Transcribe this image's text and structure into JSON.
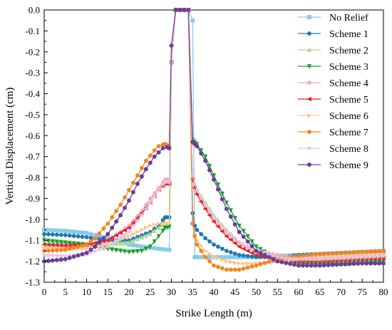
{
  "chart_data": {
    "type": "line",
    "title": "",
    "xlabel": "Strike Length (m)",
    "ylabel": "Vertical Displacement (cm)",
    "xlim": [
      0,
      80
    ],
    "ylim": [
      -1.3,
      0.0
    ],
    "xticks": [
      "0",
      "5",
      "10",
      "15",
      "20",
      "25",
      "30",
      "35",
      "40",
      "45",
      "50",
      "55",
      "60",
      "65",
      "70",
      "75",
      "80"
    ],
    "yticks": [
      "0.0",
      "-0.1",
      "-0.2",
      "-0.3",
      "-0.4",
      "-0.5",
      "-0.6",
      "-0.7",
      "-0.8",
      "-0.9",
      "-1.0",
      "-1.1",
      "-1.2",
      "-1.3"
    ],
    "grid": false,
    "legend_position": "top-right",
    "series": [
      {
        "name": "No Relief",
        "color": "#87cbe8",
        "marker": "square",
        "x": [
          0,
          5,
          10,
          15,
          20,
          25,
          27,
          29,
          29.5,
          30,
          31,
          32,
          33,
          34,
          35,
          35.5,
          36,
          37,
          40,
          45,
          50,
          55,
          60,
          65,
          70,
          75,
          80
        ],
        "y": [
          -1.05,
          -1.055,
          -1.065,
          -1.09,
          -1.12,
          -1.135,
          -1.14,
          -1.145,
          -1.145,
          -0.25,
          0.0,
          0.0,
          0.0,
          0.0,
          -0.05,
          -1.18,
          -1.18,
          -1.18,
          -1.18,
          -1.18,
          -1.18,
          -1.175,
          -1.17,
          -1.165,
          -1.16,
          -1.155,
          -1.15
        ]
      },
      {
        "name": "Scheme 1",
        "color": "#1f77b4",
        "marker": "circle",
        "x": [
          0,
          5,
          10,
          15,
          20,
          25,
          27,
          28.5,
          29,
          29.5,
          30,
          31,
          32,
          33,
          34,
          35,
          35.5,
          36,
          38,
          40,
          43,
          46,
          50,
          55,
          60,
          65,
          70,
          75,
          80
        ],
        "y": [
          -1.07,
          -1.075,
          -1.085,
          -1.1,
          -1.1,
          -1.06,
          -1.03,
          -0.99,
          -0.99,
          -0.99,
          -0.25,
          0.0,
          0.0,
          0.0,
          0.0,
          -0.97,
          -1.03,
          -1.05,
          -1.09,
          -1.12,
          -1.15,
          -1.17,
          -1.18,
          -1.18,
          -1.17,
          -1.165,
          -1.16,
          -1.155,
          -1.155
        ]
      },
      {
        "name": "Scheme 2",
        "color": "#a8dd8a",
        "marker": "triangle-up",
        "x": [
          0,
          5,
          10,
          15,
          20,
          25,
          27,
          28.5,
          29.5,
          30,
          31,
          32,
          33,
          34,
          35,
          35.5,
          36,
          38,
          40,
          43,
          46,
          50,
          55,
          60,
          65,
          70,
          75,
          80
        ],
        "y": [
          -1.11,
          -1.115,
          -1.12,
          -1.12,
          -1.11,
          -1.07,
          -1.04,
          -1.02,
          -1.02,
          -0.25,
          0.0,
          0.0,
          0.0,
          0.0,
          -0.8,
          -0.84,
          -0.86,
          -0.92,
          -0.98,
          -1.05,
          -1.11,
          -1.15,
          -1.18,
          -1.19,
          -1.19,
          -1.18,
          -1.17,
          -1.165
        ]
      },
      {
        "name": "Scheme 3",
        "color": "#1a9e2e",
        "marker": "triangle-down",
        "x": [
          0,
          5,
          10,
          15,
          20,
          23,
          25,
          27,
          28.5,
          29.5,
          30,
          31,
          32,
          33,
          34,
          35,
          35.5,
          36,
          38,
          40,
          43,
          46,
          50,
          55,
          60,
          65,
          70,
          75,
          80
        ],
        "y": [
          -1.1,
          -1.11,
          -1.12,
          -1.14,
          -1.155,
          -1.15,
          -1.13,
          -1.08,
          -1.04,
          -1.035,
          -0.25,
          0.0,
          0.0,
          0.0,
          0.0,
          -0.62,
          -0.63,
          -0.64,
          -0.7,
          -0.79,
          -0.92,
          -1.03,
          -1.13,
          -1.19,
          -1.21,
          -1.21,
          -1.21,
          -1.205,
          -1.2
        ]
      },
      {
        "name": "Scheme 4",
        "color": "#f4a6b6",
        "marker": "diamond",
        "x": [
          0,
          5,
          10,
          15,
          20,
          23,
          25,
          27,
          28.5,
          29.5,
          30,
          31,
          32,
          33,
          34,
          35,
          35.5,
          36,
          38,
          40,
          43,
          46,
          50,
          55,
          60,
          65,
          70,
          75,
          80
        ],
        "y": [
          -1.13,
          -1.135,
          -1.13,
          -1.1,
          -1.03,
          -0.96,
          -0.9,
          -0.85,
          -0.81,
          -0.81,
          -0.25,
          0.0,
          0.0,
          0.0,
          0.0,
          -0.8,
          -0.84,
          -0.86,
          -0.93,
          -0.99,
          -1.06,
          -1.11,
          -1.15,
          -1.17,
          -1.18,
          -1.18,
          -1.175,
          -1.17,
          -1.165
        ]
      },
      {
        "name": "Scheme 5",
        "color": "#e8202a",
        "marker": "triangle-left",
        "x": [
          0,
          5,
          10,
          15,
          20,
          23,
          25,
          27,
          28.5,
          29.5,
          30,
          31,
          32,
          33,
          34,
          35,
          35.5,
          36,
          38,
          40,
          43,
          46,
          50,
          55,
          60,
          65,
          70,
          75,
          80
        ],
        "y": [
          -1.12,
          -1.125,
          -1.12,
          -1.1,
          -1.04,
          -0.97,
          -0.92,
          -0.86,
          -0.83,
          -0.83,
          -0.25,
          0.0,
          0.0,
          0.0,
          0.0,
          -0.81,
          -0.85,
          -0.88,
          -0.95,
          -1.01,
          -1.08,
          -1.13,
          -1.17,
          -1.19,
          -1.2,
          -1.2,
          -1.195,
          -1.19,
          -1.185
        ]
      },
      {
        "name": "Scheme 6",
        "color": "#f9c98a",
        "marker": "triangle-right",
        "x": [
          0,
          5,
          10,
          15,
          20,
          23,
          25,
          27,
          28.5,
          29.5,
          30,
          31,
          32,
          33,
          34,
          35,
          35.5,
          36,
          38,
          40,
          43,
          46,
          50,
          55,
          60,
          65,
          70,
          75,
          80
        ],
        "y": [
          -1.13,
          -1.14,
          -1.14,
          -1.12,
          -1.08,
          -1.05,
          -1.03,
          -1.02,
          -1.02,
          -1.02,
          -0.25,
          0.0,
          0.0,
          0.0,
          0.0,
          -1.02,
          -1.07,
          -1.1,
          -1.15,
          -1.18,
          -1.2,
          -1.21,
          -1.21,
          -1.2,
          -1.19,
          -1.18,
          -1.175,
          -1.17,
          -1.165
        ]
      },
      {
        "name": "Scheme 7",
        "color": "#f5821f",
        "marker": "circle",
        "x": [
          0,
          5,
          10,
          12,
          15,
          18,
          20,
          22,
          24,
          26,
          27,
          28.5,
          29.5,
          30,
          31,
          32,
          33,
          34,
          35,
          35.5,
          36,
          38,
          40,
          43,
          46,
          50,
          55,
          60,
          65,
          70,
          75,
          80
        ],
        "y": [
          -1.15,
          -1.145,
          -1.12,
          -1.09,
          -1.02,
          -0.93,
          -0.86,
          -0.79,
          -0.72,
          -0.67,
          -0.65,
          -0.64,
          -0.65,
          -0.25,
          0.0,
          0.0,
          0.0,
          0.0,
          -1.02,
          -1.08,
          -1.12,
          -1.18,
          -1.22,
          -1.24,
          -1.24,
          -1.22,
          -1.19,
          -1.175,
          -1.165,
          -1.16,
          -1.155,
          -1.15
        ]
      },
      {
        "name": "Scheme 8",
        "color": "#e4c2e2",
        "marker": "star",
        "x": [
          0,
          5,
          10,
          15,
          20,
          23,
          25,
          27,
          28.5,
          29.5,
          30,
          31,
          32,
          33,
          34,
          35,
          35.5,
          36,
          38,
          40,
          43,
          46,
          50,
          55,
          60,
          65,
          70,
          75,
          80
        ],
        "y": [
          -1.17,
          -1.175,
          -1.165,
          -1.13,
          -1.06,
          -0.98,
          -0.92,
          -0.86,
          -0.82,
          -0.82,
          -0.25,
          0.0,
          0.0,
          0.0,
          0.0,
          -0.79,
          -0.83,
          -0.86,
          -0.93,
          -0.99,
          -1.06,
          -1.11,
          -1.15,
          -1.18,
          -1.19,
          -1.19,
          -1.185,
          -1.18,
          -1.175
        ]
      },
      {
        "name": "Scheme 9",
        "color": "#6a3d9a",
        "marker": "hexagon",
        "x": [
          0,
          5,
          10,
          12,
          15,
          18,
          20,
          22,
          24,
          26,
          27,
          28,
          29,
          29.5,
          30,
          31,
          32,
          33,
          34,
          35,
          35.5,
          36,
          38,
          40,
          43,
          46,
          50,
          55,
          60,
          65,
          70,
          75,
          80
        ],
        "y": [
          -1.2,
          -1.19,
          -1.16,
          -1.13,
          -1.07,
          -0.98,
          -0.91,
          -0.83,
          -0.76,
          -0.7,
          -0.68,
          -0.66,
          -0.655,
          -0.66,
          -0.17,
          0.0,
          0.0,
          0.0,
          0.0,
          -0.63,
          -0.64,
          -0.65,
          -0.72,
          -0.81,
          -0.95,
          -1.06,
          -1.15,
          -1.2,
          -1.22,
          -1.22,
          -1.215,
          -1.21,
          -1.21
        ]
      }
    ]
  }
}
